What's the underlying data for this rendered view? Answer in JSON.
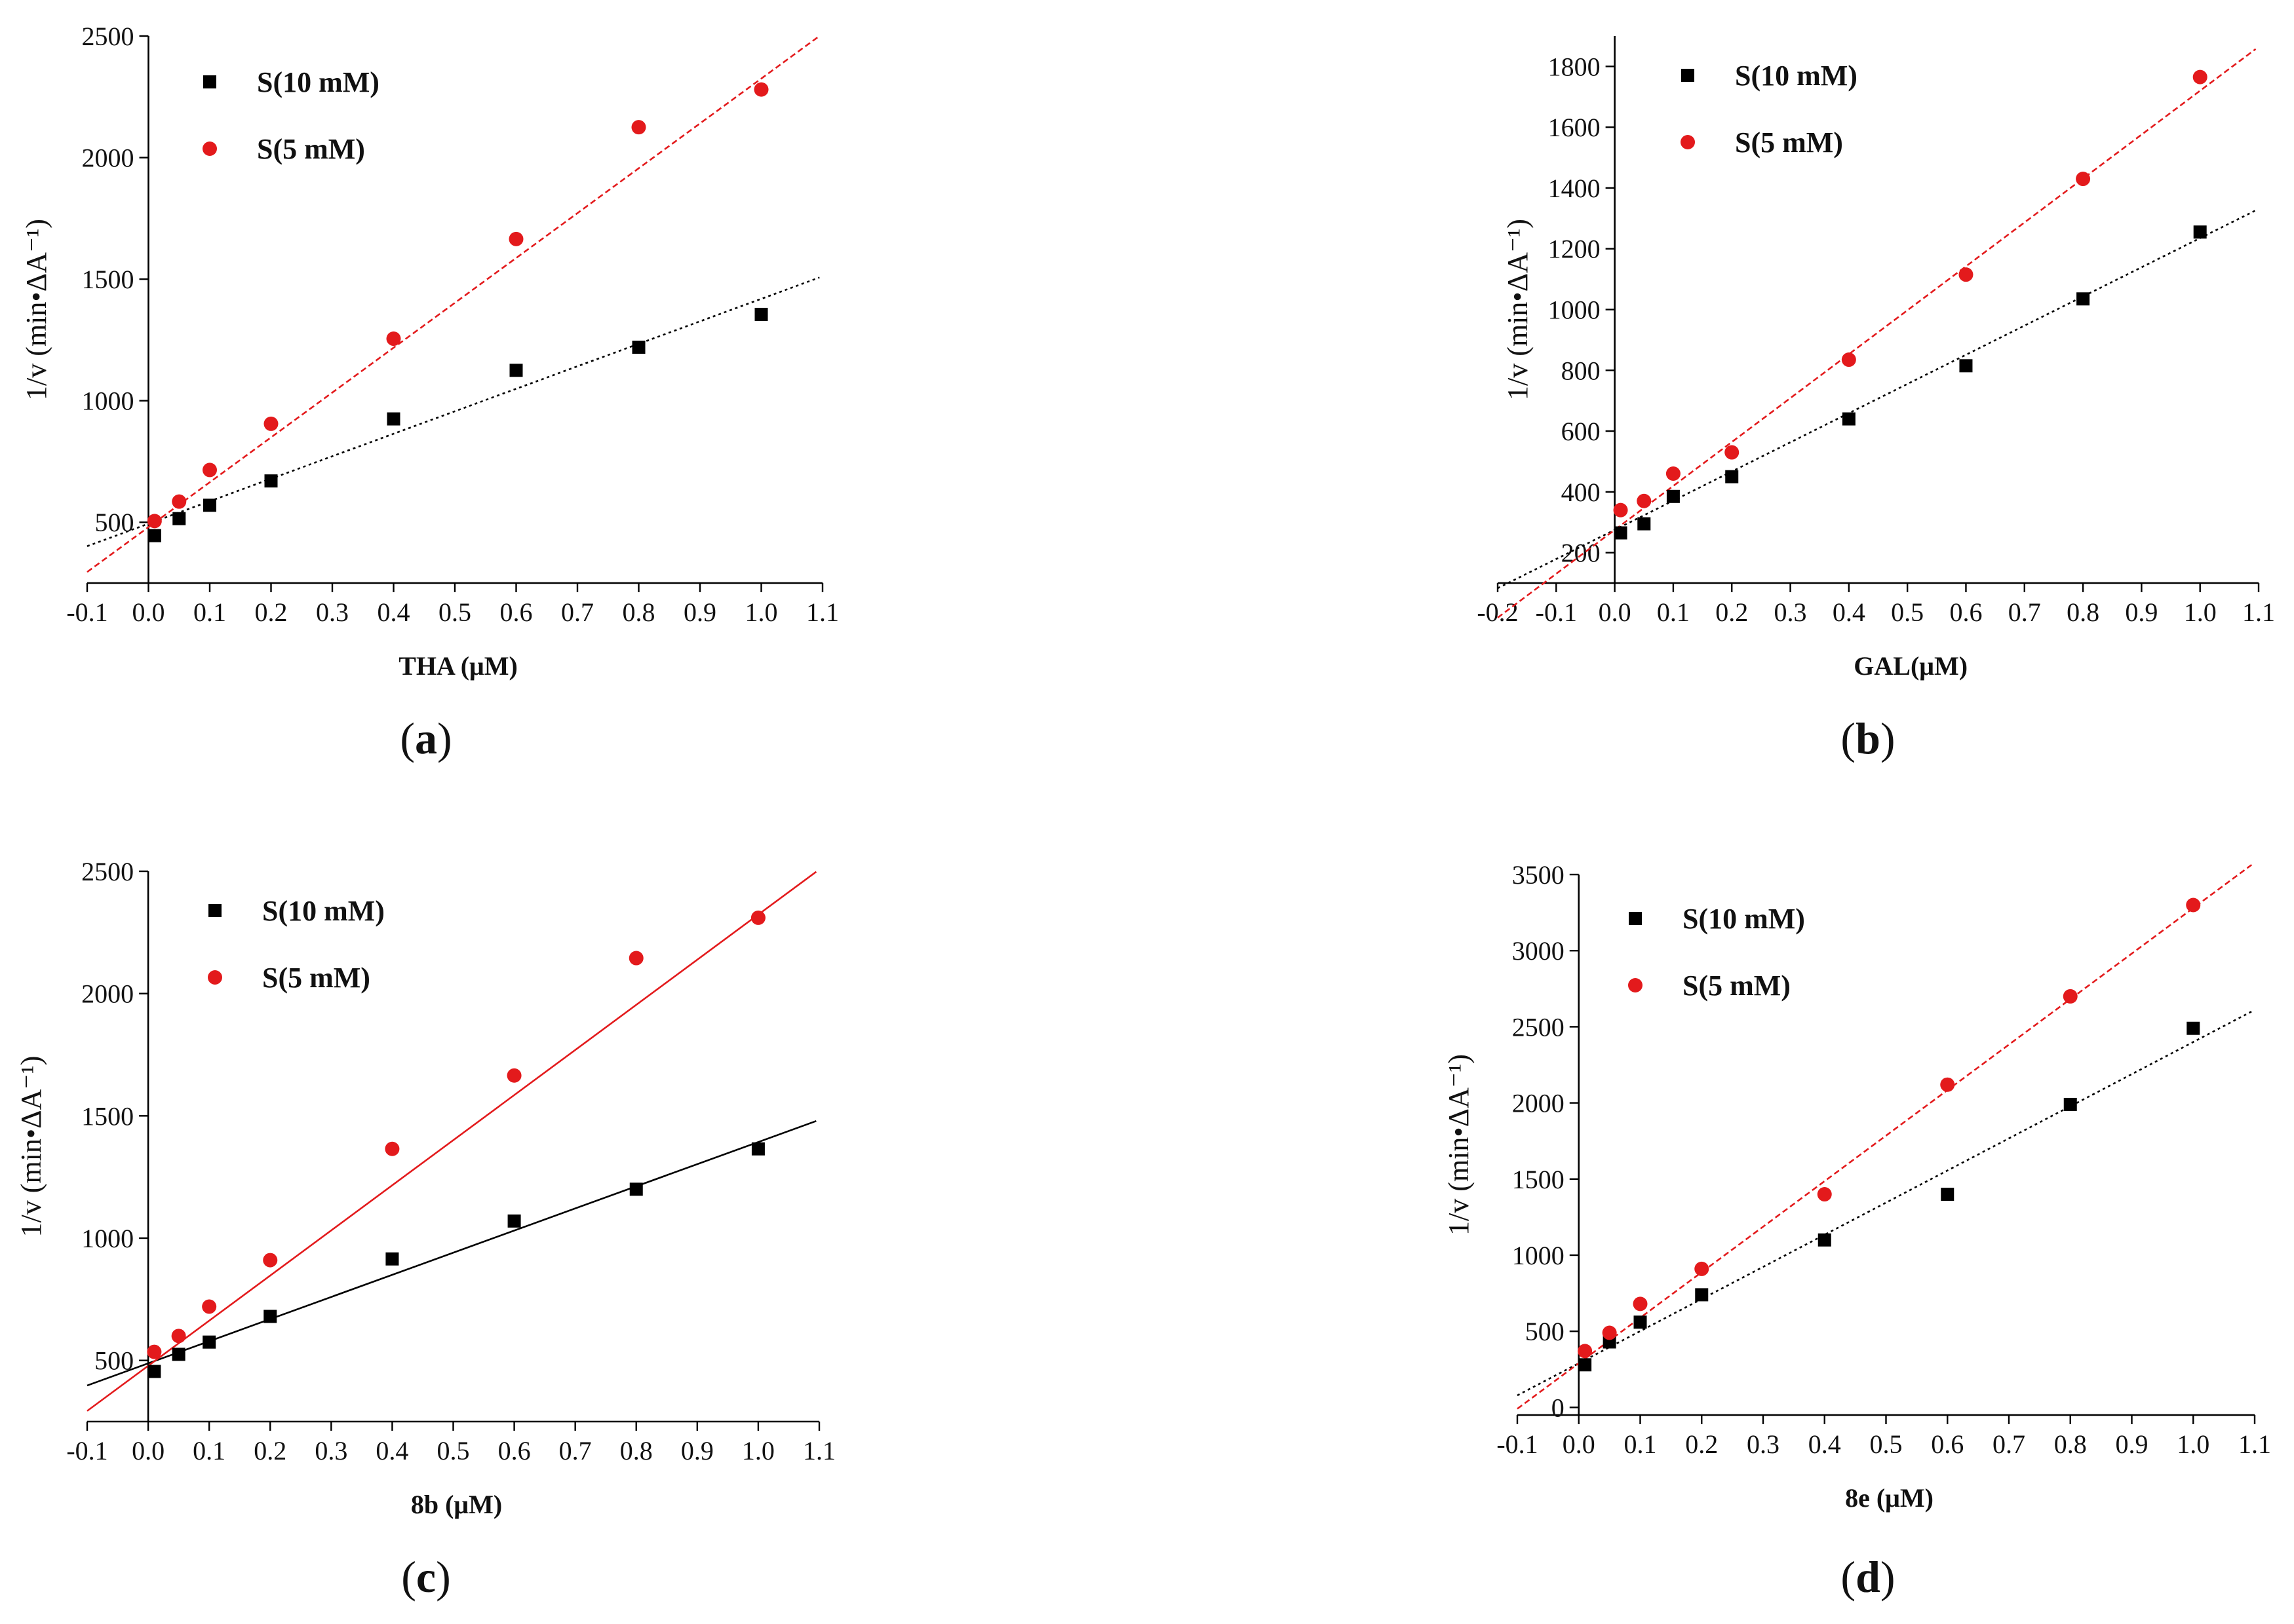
{
  "chart_data": [
    {
      "type": "scatter",
      "panel": "(a)",
      "panel_open": "(",
      "panel_letter": "a",
      "panel_close": ")",
      "xlabel": "THA (μM)",
      "ylabel": "1/v (min•ΔA⁻¹)",
      "xlim": [
        -0.1,
        1.1
      ],
      "ylim": [
        250,
        2500
      ],
      "xticks": [
        "-0.1",
        "0.0",
        "0.1",
        "0.2",
        "0.3",
        "0.4",
        "0.5",
        "0.6",
        "0.7",
        "0.8",
        "0.9",
        "1.0",
        "1.1"
      ],
      "yticks": [
        500,
        1000,
        1500,
        2000,
        2500
      ],
      "x": [
        0.01,
        0.05,
        0.1,
        0.2,
        0.4,
        0.6,
        0.8,
        1.0
      ],
      "series": [
        {
          "name": "S(10 mM)",
          "color": "#000000",
          "marker": "square",
          "line": "dotted",
          "values": [
            445,
            515,
            570,
            670,
            925,
            1125,
            1220,
            1355
          ],
          "fit": [
            494,
            925
          ]
        },
        {
          "name": "S(5 mM)",
          "color": "#e31a1c",
          "marker": "circle",
          "line": "dashed",
          "values": [
            505,
            585,
            715,
            905,
            1255,
            1665,
            2125,
            2280
          ],
          "fit": [
            480,
            1845
          ]
        }
      ]
    },
    {
      "type": "scatter",
      "panel": "(b)",
      "panel_open": "(",
      "panel_letter": "b",
      "panel_close": ")",
      "xlabel": "GAL(μM)",
      "ylabel": "1/v (min•ΔA⁻¹)",
      "xlim": [
        -0.2,
        1.1
      ],
      "ylim": [
        100,
        1900
      ],
      "xticks": [
        "-0.2",
        "-0.1",
        "0.0",
        "0.1",
        "0.2",
        "0.3",
        "0.4",
        "0.5",
        "0.6",
        "0.7",
        "0.8",
        "0.9",
        "1.0",
        "1.1"
      ],
      "yticks": [
        200,
        400,
        600,
        800,
        1000,
        1200,
        1400,
        1600,
        1800
      ],
      "x": [
        0.01,
        0.05,
        0.1,
        0.2,
        0.4,
        0.6,
        0.8,
        1.0
      ],
      "series": [
        {
          "name": "S(10 mM)",
          "color": "#000000",
          "marker": "square",
          "line": "dotted",
          "values": [
            265,
            295,
            385,
            450,
            640,
            815,
            1035,
            1255
          ],
          "fit": [
            275,
            960
          ]
        },
        {
          "name": "S(5 mM)",
          "color": "#e31a1c",
          "marker": "circle",
          "line": "dashed",
          "values": [
            340,
            370,
            460,
            530,
            835,
            1115,
            1430,
            1765
          ],
          "fit": [
            275,
            1445
          ]
        }
      ]
    },
    {
      "type": "scatter",
      "panel": "(c)",
      "panel_open": "(",
      "panel_letter": "c",
      "panel_close": ")",
      "xlabel": "8b (μM)",
      "ylabel": "1/v (min•ΔA⁻¹)",
      "xlim": [
        -0.1,
        1.1
      ],
      "ylim": [
        250,
        2500
      ],
      "xticks": [
        "-0.1",
        "0.0",
        "0.1",
        "0.2",
        "0.3",
        "0.4",
        "0.5",
        "0.6",
        "0.7",
        "0.8",
        "0.9",
        "1.0",
        "1.1"
      ],
      "yticks": [
        500,
        1000,
        1500,
        2000,
        2500
      ],
      "x": [
        0.01,
        0.05,
        0.1,
        0.2,
        0.4,
        0.6,
        0.8,
        1.0
      ],
      "series": [
        {
          "name": "S(10 mM)",
          "color": "#000000",
          "marker": "square",
          "line": "solid",
          "values": [
            455,
            525,
            575,
            680,
            915,
            1070,
            1200,
            1365
          ],
          "fit": [
            488,
            905
          ]
        },
        {
          "name": "S(5 mM)",
          "color": "#e31a1c",
          "marker": "circle",
          "line": "solid",
          "values": [
            535,
            600,
            720,
            910,
            1365,
            1665,
            2145,
            2310
          ],
          "fit": [
            478,
            1845
          ]
        }
      ]
    },
    {
      "type": "scatter",
      "panel": "(d)",
      "panel_open": "(",
      "panel_letter": "d",
      "panel_close": ")",
      "xlabel": "8e (μM)",
      "ylabel": "1/v (min•ΔA⁻¹)",
      "xlim": [
        -0.1,
        1.1
      ],
      "ylim": [
        -50,
        3500
      ],
      "xticks": [
        "-0.1",
        "0.0",
        "0.1",
        "0.2",
        "0.3",
        "0.4",
        "0.5",
        "0.6",
        "0.7",
        "0.8",
        "0.9",
        "1.0",
        "1.1"
      ],
      "yticks": [
        0,
        500,
        1000,
        1500,
        2000,
        2500,
        3000,
        3500
      ],
      "x": [
        0.01,
        0.05,
        0.1,
        0.2,
        0.4,
        0.6,
        0.8,
        1.0
      ],
      "series": [
        {
          "name": "S(10 mM)",
          "color": "#000000",
          "marker": "square",
          "line": "dotted",
          "values": [
            280,
            430,
            560,
            740,
            1100,
            1400,
            1990,
            2490
          ],
          "fit": [
            290,
            2110
          ]
        },
        {
          "name": "S(5 mM)",
          "color": "#e31a1c",
          "marker": "circle",
          "line": "dashed",
          "values": [
            370,
            490,
            680,
            910,
            1400,
            2120,
            2700,
            3300
          ],
          "fit": [
            290,
            2990
          ]
        }
      ]
    }
  ]
}
